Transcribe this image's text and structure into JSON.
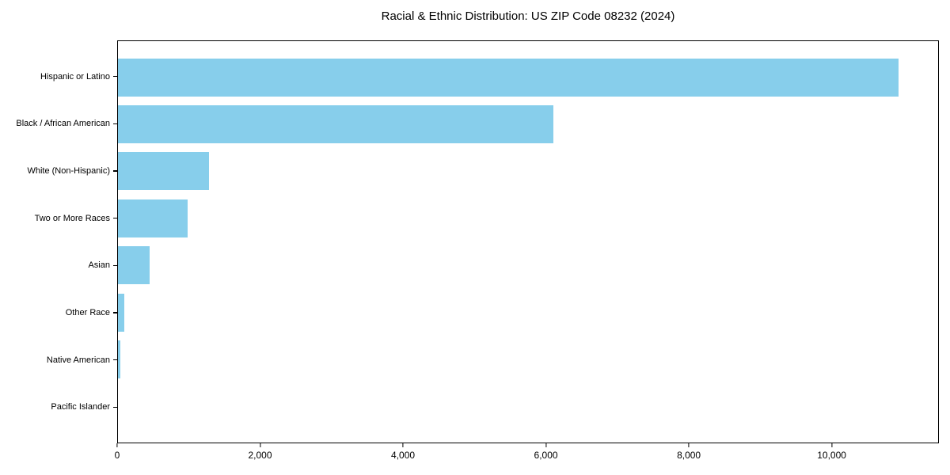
{
  "chart_data": {
    "type": "bar",
    "orientation": "horizontal",
    "title": "Racial & Ethnic Distribution: US ZIP Code 08232 (2024)",
    "categories": [
      "Hispanic or Latino",
      "Black / African American",
      "White (Non-Hispanic)",
      "Two or More Races",
      "Asian",
      "Other Race",
      "Native American",
      "Pacific Islander"
    ],
    "values": [
      10950,
      6100,
      1275,
      975,
      445,
      85,
      30,
      0
    ],
    "xlabel": "",
    "ylabel": "",
    "xlim": [
      0,
      11500
    ],
    "x_ticks": [
      0,
      2000,
      4000,
      6000,
      8000,
      10000
    ],
    "x_tick_labels": [
      "0",
      "2,000",
      "4,000",
      "6,000",
      "8,000",
      "10,000"
    ],
    "grid": false,
    "legend": null,
    "bar_color": "#87CEEB"
  },
  "colors": {
    "bar": "#87CEEB",
    "axis": "#000000",
    "text": "#000000",
    "background": "#FFFFFF"
  }
}
